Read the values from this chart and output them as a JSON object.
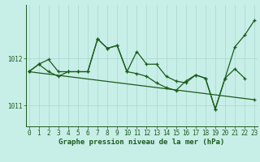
{
  "background_color": "#c8eee8",
  "line_color": "#1a5c1a",
  "grid_color": "#a8d8d0",
  "xlabel": "Graphe pression niveau de la mer (hPa)",
  "ylim": [
    1010.55,
    1013.15
  ],
  "xlim": [
    -0.3,
    23.3
  ],
  "yticks": [
    1011,
    1012
  ],
  "xticks": [
    0,
    1,
    2,
    3,
    4,
    5,
    6,
    7,
    8,
    9,
    10,
    11,
    12,
    13,
    14,
    15,
    16,
    17,
    18,
    19,
    20,
    21,
    22,
    23
  ],
  "tick_fontsize": 5.5,
  "xlabel_fontsize": 6.5,
  "series1": [
    1011.72,
    1011.88,
    1011.98,
    1011.72,
    1011.72,
    1011.72,
    1011.72,
    1012.42,
    1012.22,
    1012.28,
    1011.72,
    1012.15,
    1011.88,
    1011.88,
    1011.62,
    1011.52,
    1011.48,
    1011.65,
    1011.58,
    1010.92,
    1011.58,
    1012.25,
    1012.5,
    1012.82
  ],
  "series2": [
    1011.72,
    1011.88,
    1011.72,
    1011.62,
    1011.72,
    1011.72,
    1011.72,
    1012.42,
    1012.22,
    1012.28,
    1011.72,
    1011.68,
    1011.62,
    1011.48,
    1011.38,
    1011.32,
    1011.52,
    1011.65,
    1011.58,
    1010.92,
    1011.58,
    1011.78,
    1011.58
  ],
  "series3_x": [
    0,
    23
  ],
  "series3_y": [
    1011.72,
    1011.12
  ],
  "lw": 0.9,
  "ms": 2.8,
  "mew": 0.9
}
